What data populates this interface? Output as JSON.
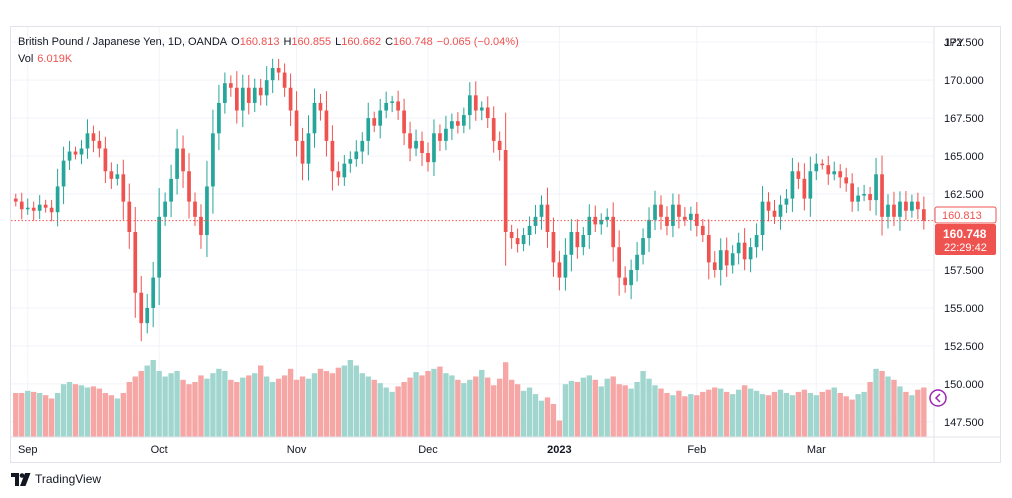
{
  "legend": {
    "symbol": "British Pound / Japanese Yen, 1D, OANDA",
    "open_label": "O",
    "open": "160.813",
    "high_label": "H",
    "high": "160.855",
    "low_label": "L",
    "low": "160.662",
    "close_label": "C",
    "close": "160.748",
    "change": "−0.065 (−0.04%)",
    "vol_label": "Vol",
    "vol": "6.019K"
  },
  "currency": "JPY",
  "price_tags": {
    "open": "160.813",
    "last": "160.748",
    "countdown": "22:29:42"
  },
  "brand": {
    "name": "TradingView"
  },
  "colors": {
    "up": "#26a69a",
    "down": "#ef5350",
    "vol_up": "#a1d6cf",
    "vol_down": "#f5a6a5",
    "grid": "#f0f3fa",
    "price_line": "#ef5350"
  },
  "chart_data": {
    "type": "candlestick",
    "title": "British Pound / Japanese Yen, 1D, OANDA",
    "ylim": [
      146.5,
      173.5
    ],
    "y_ticks": [
      "172.500",
      "170.000",
      "167.500",
      "165.000",
      "162.500",
      "157.500",
      "155.000",
      "152.500",
      "150.000",
      "147.500"
    ],
    "x_ticks": [
      {
        "label": "Sep",
        "index": 2,
        "bold": false
      },
      {
        "label": "Oct",
        "index": 24,
        "bold": false
      },
      {
        "label": "Nov",
        "index": 47,
        "bold": false
      },
      {
        "label": "Dec",
        "index": 69,
        "bold": false
      },
      {
        "label": "2023",
        "index": 91,
        "bold": true
      },
      {
        "label": "Feb",
        "index": 114,
        "bold": false
      },
      {
        "label": "Mar",
        "index": 134,
        "bold": false
      }
    ],
    "closes": [
      162.0,
      161.5,
      161.6,
      161.4,
      161.8,
      161.6,
      161.3,
      163.0,
      164.7,
      165.3,
      165.1,
      165.5,
      166.5,
      166.0,
      165.5,
      164.0,
      163.5,
      163.8,
      162.0,
      160.0,
      156.0,
      154.0,
      155.0,
      157.0,
      161.0,
      162.0,
      163.5,
      165.5,
      164.0,
      162.0,
      161.0,
      159.8,
      163.0,
      166.5,
      168.5,
      169.8,
      169.5,
      168.0,
      169.5,
      168.5,
      169.5,
      169.0,
      170.0,
      170.8,
      170.5,
      169.5,
      168.0,
      166.0,
      164.5,
      166.5,
      168.5,
      168.0,
      166.0,
      164.0,
      163.6,
      164.5,
      164.8,
      165.3,
      166.0,
      167.5,
      167.0,
      168.0,
      168.5,
      168.6,
      168.0,
      166.5,
      165.5,
      166.0,
      165.2,
      164.6,
      166.5,
      166.0,
      166.8,
      167.3,
      167.0,
      167.7,
      169.0,
      168.0,
      168.2,
      167.5,
      166.0,
      165.4,
      160.0,
      159.6,
      159.2,
      159.8,
      160.4,
      161.0,
      161.8,
      160.0,
      158.0,
      157.0,
      158.5,
      160.0,
      159.0,
      159.8,
      161.0,
      160.5,
      160.8,
      161.0,
      159.0,
      157.0,
      156.5,
      157.5,
      158.5,
      159.6,
      160.8,
      161.8,
      161.0,
      160.4,
      161.8,
      161.0,
      160.8,
      161.2,
      160.4,
      159.8,
      158.0,
      157.5,
      158.8,
      157.8,
      158.6,
      159.3,
      158.2,
      159.0,
      159.8,
      162.0,
      161.4,
      161.0,
      161.8,
      162.2,
      164.0,
      163.5,
      162.2,
      164.0,
      164.5,
      164.4,
      163.8,
      164.0,
      163.6,
      163.2,
      162.0,
      162.4,
      162.5,
      162.1,
      163.8,
      161.0,
      161.8,
      161.0,
      162.0,
      161.4,
      162.0,
      161.5,
      160.75
    ],
    "volume_levels": [
      0.4,
      0.4,
      0.42,
      0.41,
      0.4,
      0.38,
      0.35,
      0.4,
      0.48,
      0.5,
      0.48,
      0.47,
      0.45,
      0.46,
      0.44,
      0.4,
      0.38,
      0.35,
      0.4,
      0.5,
      0.55,
      0.6,
      0.65,
      0.7,
      0.6,
      0.55,
      0.58,
      0.6,
      0.52,
      0.48,
      0.5,
      0.56,
      0.53,
      0.58,
      0.62,
      0.6,
      0.52,
      0.5,
      0.54,
      0.56,
      0.58,
      0.65,
      0.55,
      0.5,
      0.53,
      0.56,
      0.62,
      0.52,
      0.55,
      0.53,
      0.58,
      0.62,
      0.6,
      0.58,
      0.63,
      0.65,
      0.7,
      0.65,
      0.58,
      0.55,
      0.52,
      0.49,
      0.45,
      0.41,
      0.46,
      0.5,
      0.54,
      0.59,
      0.56,
      0.6,
      0.62,
      0.64,
      0.58,
      0.56,
      0.52,
      0.49,
      0.52,
      0.55,
      0.61,
      0.54,
      0.47,
      0.53,
      0.68,
      0.52,
      0.48,
      0.42,
      0.45,
      0.39,
      0.33,
      0.36,
      0.3,
      0.15,
      0.48,
      0.51,
      0.5,
      0.54,
      0.56,
      0.52,
      0.46,
      0.53,
      0.55,
      0.48,
      0.47,
      0.44,
      0.5,
      0.6,
      0.53,
      0.47,
      0.44,
      0.4,
      0.38,
      0.42,
      0.37,
      0.39,
      0.38,
      0.41,
      0.43,
      0.45,
      0.44,
      0.41,
      0.39,
      0.43,
      0.47,
      0.44,
      0.42,
      0.39,
      0.38,
      0.41,
      0.43,
      0.4,
      0.38,
      0.41,
      0.43,
      0.4,
      0.38,
      0.41,
      0.43,
      0.45,
      0.4,
      0.37,
      0.34,
      0.39,
      0.41,
      0.5,
      0.62,
      0.6,
      0.55,
      0.52,
      0.46,
      0.41,
      0.38,
      0.43,
      0.45
    ]
  }
}
